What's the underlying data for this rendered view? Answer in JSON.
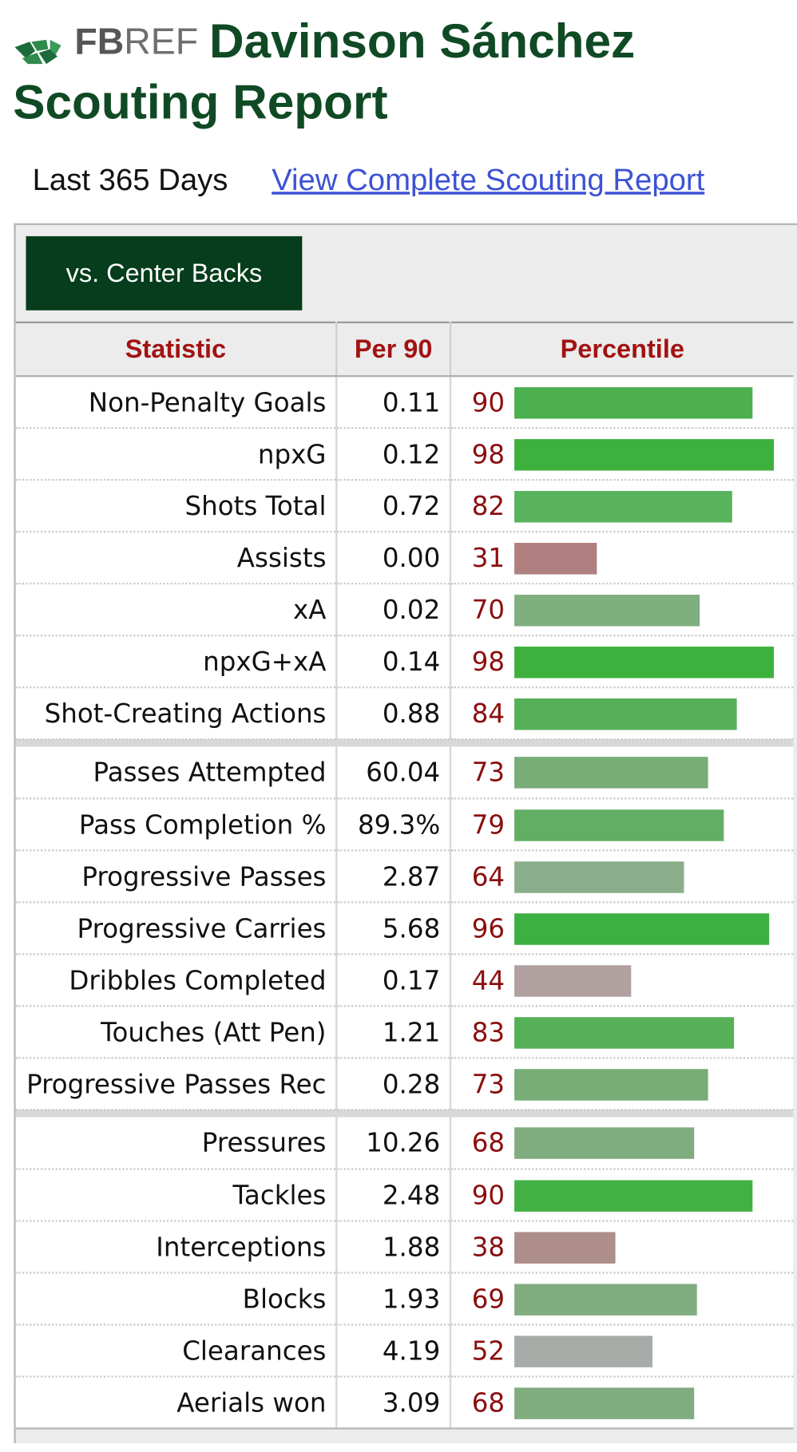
{
  "header": {
    "logo_text_bold": "FB",
    "logo_text_light": "REF",
    "title_line1": "Davinson Sánchez",
    "title_line2": "Scouting Report"
  },
  "subheader": {
    "range_label": "Last 365 Days",
    "link_label": "View Complete Scouting Report"
  },
  "filter": {
    "button_label": "vs. Center Backs"
  },
  "table": {
    "columns": [
      "Statistic",
      "Per 90",
      "Percentile"
    ],
    "groups": [
      [
        {
          "stat": "Non-Penalty Goals",
          "per90": "0.11",
          "pct": 90,
          "color": "#4caf50"
        },
        {
          "stat": "npxG",
          "per90": "0.12",
          "pct": 98,
          "color": "#3db03d"
        },
        {
          "stat": "Shots Total",
          "per90": "0.72",
          "pct": 82,
          "color": "#59b25c"
        },
        {
          "stat": "Assists",
          "per90": "0.00",
          "pct": 31,
          "color": "#b08080"
        },
        {
          "stat": "xA",
          "per90": "0.02",
          "pct": 70,
          "color": "#7fae7f"
        },
        {
          "stat": "npxG+xA",
          "per90": "0.14",
          "pct": 98,
          "color": "#3db03d"
        },
        {
          "stat": "Shot-Creating Actions",
          "per90": "0.88",
          "pct": 84,
          "color": "#55b058"
        }
      ],
      [
        {
          "stat": "Passes Attempted",
          "per90": "60.04",
          "pct": 73,
          "color": "#78ad78"
        },
        {
          "stat": "Pass Completion %",
          "per90": "89.3%",
          "pct": 79,
          "color": "#62ae64"
        },
        {
          "stat": "Progressive Passes",
          "per90": "2.87",
          "pct": 64,
          "color": "#8aae8a"
        },
        {
          "stat": "Progressive Carries",
          "per90": "5.68",
          "pct": 96,
          "color": "#3cb041"
        },
        {
          "stat": "Dribbles Completed",
          "per90": "0.17",
          "pct": 44,
          "color": "#b0a0a0"
        },
        {
          "stat": "Touches (Att Pen)",
          "per90": "1.21",
          "pct": 83,
          "color": "#55b058"
        },
        {
          "stat": "Progressive Passes Rec",
          "per90": "0.28",
          "pct": 73,
          "color": "#78ad78"
        }
      ],
      [
        {
          "stat": "Pressures",
          "per90": "10.26",
          "pct": 68,
          "color": "#80ad80"
        },
        {
          "stat": "Tackles",
          "per90": "2.48",
          "pct": 90,
          "color": "#43b045"
        },
        {
          "stat": "Interceptions",
          "per90": "1.88",
          "pct": 38,
          "color": "#ae8e8a"
        },
        {
          "stat": "Blocks",
          "per90": "1.93",
          "pct": 69,
          "color": "#80ad80"
        },
        {
          "stat": "Clearances",
          "per90": "4.19",
          "pct": 52,
          "color": "#a8aca8"
        },
        {
          "stat": "Aerials won",
          "per90": "3.09",
          "pct": 68,
          "color": "#80ad80"
        }
      ]
    ]
  }
}
